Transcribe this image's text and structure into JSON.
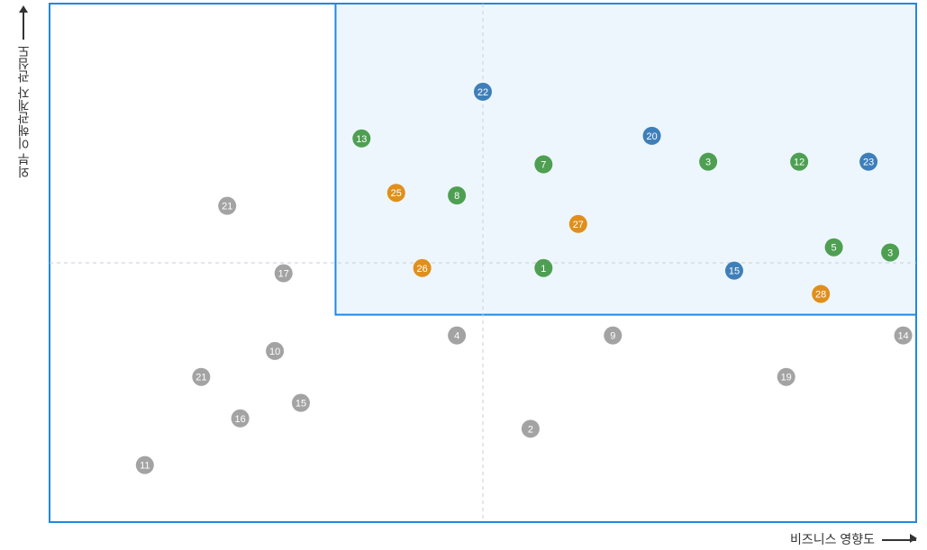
{
  "chart_data": {
    "type": "scatter",
    "xlabel": "비즈니스 영향도",
    "ylabel": "외부 이해관계자 관심도",
    "xlim": [
      0,
      100
    ],
    "ylim": [
      0,
      100
    ],
    "crosshair": {
      "x": 50,
      "y": 50
    },
    "highlight_region": {
      "x_start": 33,
      "x_end": 100,
      "y_start": 40,
      "y_end": 100
    },
    "series": [
      {
        "category": "gray",
        "color": "#A3A3A3",
        "points": [
          {
            "label": "21",
            "x": 20.5,
            "y": 61
          },
          {
            "label": "17",
            "x": 27,
            "y": 48
          },
          {
            "label": "10",
            "x": 26,
            "y": 33
          },
          {
            "label": "21",
            "x": 17.5,
            "y": 28
          },
          {
            "label": "16",
            "x": 22,
            "y": 20
          },
          {
            "label": "15",
            "x": 29,
            "y": 23
          },
          {
            "label": "11",
            "x": 11,
            "y": 11
          },
          {
            "label": "4",
            "x": 47,
            "y": 36
          },
          {
            "label": "9",
            "x": 65,
            "y": 36
          },
          {
            "label": "2",
            "x": 55.5,
            "y": 18
          },
          {
            "label": "19",
            "x": 85,
            "y": 28
          },
          {
            "label": "14",
            "x": 98.5,
            "y": 36
          }
        ]
      },
      {
        "category": "green",
        "color": "#4E9F52",
        "points": [
          {
            "label": "13",
            "x": 36,
            "y": 74
          },
          {
            "label": "8",
            "x": 47,
            "y": 63
          },
          {
            "label": "7",
            "x": 57,
            "y": 69
          },
          {
            "label": "1",
            "x": 57,
            "y": 49
          },
          {
            "label": "3",
            "x": 76,
            "y": 69.5
          },
          {
            "label": "12",
            "x": 86.5,
            "y": 69.5
          },
          {
            "label": "5",
            "x": 90.5,
            "y": 53
          },
          {
            "label": "3",
            "x": 97,
            "y": 52
          }
        ]
      },
      {
        "category": "blue",
        "color": "#3E7FB9",
        "points": [
          {
            "label": "22",
            "x": 50,
            "y": 83
          },
          {
            "label": "20",
            "x": 69.5,
            "y": 74.5
          },
          {
            "label": "23",
            "x": 94.5,
            "y": 69.5
          },
          {
            "label": "15",
            "x": 79,
            "y": 48.5
          }
        ]
      },
      {
        "category": "orange",
        "color": "#E08F1C",
        "points": [
          {
            "label": "25",
            "x": 40,
            "y": 63.5
          },
          {
            "label": "26",
            "x": 43,
            "y": 49
          },
          {
            "label": "27",
            "x": 61,
            "y": 57.5
          },
          {
            "label": "28",
            "x": 89,
            "y": 44
          }
        ]
      }
    ]
  },
  "colors": {
    "frame": "#1E88E5",
    "highlight_fill": "#EEF6FD",
    "crosshair": "#C7CED8"
  }
}
